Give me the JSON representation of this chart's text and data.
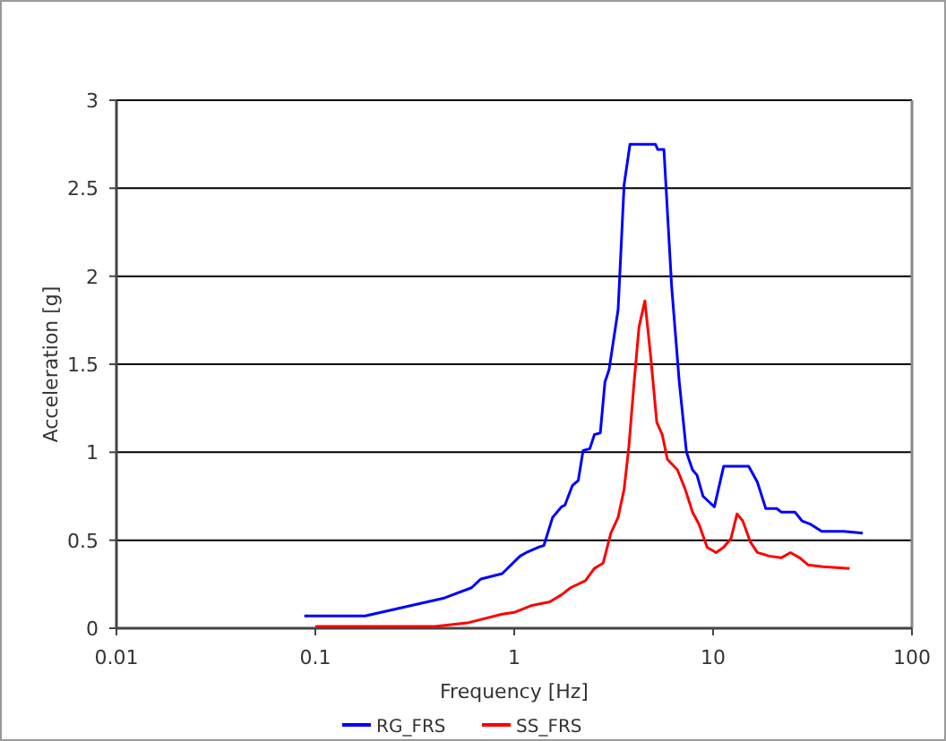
{
  "chart_data": {
    "type": "line",
    "xlabel": "Frequency [Hz]",
    "ylabel": "Acceleration [g]",
    "log": "x",
    "grid": "y",
    "legend": "bottom",
    "marker": "none",
    "line_style": "solid",
    "xlim": [
      0.01,
      100
    ],
    "xticks": [
      0.01,
      0.1,
      1,
      10,
      100
    ],
    "ylim": [
      0,
      3
    ],
    "yticks": [
      0,
      0.5,
      1,
      1.5,
      2,
      2.5,
      3
    ],
    "series": [
      {
        "name": "RG_FRS",
        "color": "#0000ff",
        "x": [
          0.088,
          0.178,
          0.44,
          0.61,
          0.68,
          0.87,
          1.07,
          1.15,
          1.32,
          1.41,
          1.56,
          1.73,
          1.8,
          1.96,
          2.1,
          2.22,
          2.4,
          2.53,
          2.71,
          2.86,
          3.0,
          3.33,
          3.57,
          3.82,
          5.13,
          5.27,
          5.66,
          6.19,
          6.76,
          7.35,
          7.88,
          8.3,
          8.9,
          10.15,
          11.3,
          15.1,
          16.7,
          18.4,
          20.9,
          22,
          25.8,
          28,
          31,
          35.2,
          45.5,
          56.6
        ],
        "values": [
          0.07,
          0.07,
          0.17,
          0.23,
          0.28,
          0.31,
          0.41,
          0.43,
          0.46,
          0.47,
          0.63,
          0.69,
          0.7,
          0.81,
          0.84,
          1.01,
          1.02,
          1.1,
          1.11,
          1.4,
          1.47,
          1.81,
          2.52,
          2.75,
          2.75,
          2.72,
          2.72,
          1.94,
          1.4,
          1.0,
          0.9,
          0.87,
          0.75,
          0.69,
          0.92,
          0.92,
          0.83,
          0.68,
          0.68,
          0.66,
          0.66,
          0.61,
          0.59,
          0.55,
          0.55,
          0.54
        ]
      },
      {
        "name": "SS_FRS",
        "color": "#ff0000",
        "x": [
          0.1,
          0.4,
          0.58,
          0.87,
          1.0,
          1.23,
          1.51,
          1.73,
          1.92,
          2.28,
          2.53,
          2.8,
          3.06,
          3.33,
          3.57,
          3.77,
          4.01,
          4.24,
          4.54,
          4.86,
          5.21,
          5.55,
          5.89,
          6.62,
          7.24,
          7.88,
          8.5,
          9.33,
          10.35,
          11.3,
          12.3,
          13.2,
          14.1,
          15.4,
          16.7,
          19.2,
          22,
          24.5,
          27.3,
          30,
          35.7,
          48.6
        ],
        "values": [
          0.01,
          0.01,
          0.03,
          0.08,
          0.09,
          0.13,
          0.15,
          0.19,
          0.23,
          0.27,
          0.34,
          0.37,
          0.54,
          0.63,
          0.79,
          1.03,
          1.4,
          1.71,
          1.86,
          1.54,
          1.17,
          1.1,
          0.96,
          0.9,
          0.79,
          0.66,
          0.59,
          0.46,
          0.43,
          0.46,
          0.51,
          0.65,
          0.61,
          0.49,
          0.43,
          0.41,
          0.4,
          0.43,
          0.4,
          0.36,
          0.35,
          0.34
        ]
      }
    ]
  }
}
